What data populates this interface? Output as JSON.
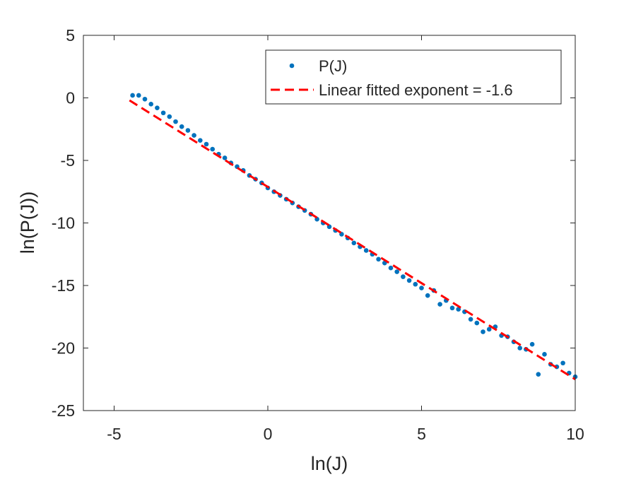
{
  "chart_data": {
    "type": "scatter",
    "title": "",
    "xlabel": "ln(J)",
    "ylabel": "ln(P(J))",
    "xlim": [
      -6,
      10
    ],
    "ylim": [
      -25,
      5
    ],
    "xticks": [
      -5,
      0,
      5,
      10
    ],
    "yticks": [
      5,
      0,
      -5,
      -10,
      -15,
      -20,
      -25
    ],
    "xtick_labels": [
      "-5",
      "0",
      "5",
      "10"
    ],
    "ytick_labels": [
      "5",
      "0",
      "-5",
      "-10",
      "-15",
      "-20",
      "-25"
    ],
    "grid": false,
    "legend_position": "top-right",
    "colors": {
      "points": "#0072BD",
      "fit": "#FF0000",
      "axes": "#262626"
    },
    "series": [
      {
        "name": "P(J)",
        "kind": "points",
        "x": [
          -4.4,
          -4.2,
          -4.0,
          -3.8,
          -3.6,
          -3.4,
          -3.2,
          -3.0,
          -2.8,
          -2.6,
          -2.4,
          -2.2,
          -2.0,
          -1.8,
          -1.6,
          -1.4,
          -1.2,
          -1.0,
          -0.8,
          -0.6,
          -0.4,
          -0.2,
          0.0,
          0.2,
          0.4,
          0.6,
          0.8,
          1.0,
          1.2,
          1.4,
          1.6,
          1.8,
          2.0,
          2.2,
          2.4,
          2.6,
          2.8,
          3.0,
          3.2,
          3.4,
          3.6,
          3.8,
          4.0,
          4.2,
          4.4,
          4.6,
          4.8,
          5.0,
          5.2,
          5.4,
          5.6,
          5.8,
          6.0,
          6.2,
          6.4,
          6.6,
          6.8,
          7.0,
          7.2,
          7.4,
          7.6,
          7.8,
          8.0,
          8.2,
          8.4,
          8.6,
          8.8,
          9.0,
          9.2,
          9.4,
          9.6,
          9.8,
          10.0
        ],
        "y": [
          0.2,
          0.2,
          -0.1,
          -0.5,
          -0.8,
          -1.2,
          -1.5,
          -1.9,
          -2.3,
          -2.6,
          -3.0,
          -3.4,
          -3.7,
          -4.1,
          -4.5,
          -4.8,
          -5.2,
          -5.5,
          -5.8,
          -6.2,
          -6.5,
          -6.8,
          -7.2,
          -7.5,
          -7.8,
          -8.1,
          -8.4,
          -8.7,
          -9.0,
          -9.3,
          -9.7,
          -10.0,
          -10.3,
          -10.6,
          -10.9,
          -11.2,
          -11.6,
          -11.9,
          -12.2,
          -12.5,
          -12.9,
          -13.2,
          -13.6,
          -13.9,
          -14.3,
          -14.6,
          -14.9,
          -15.2,
          -15.8,
          -15.4,
          -16.5,
          -16.2,
          -16.8,
          -16.9,
          -17.1,
          -17.7,
          -18.0,
          -18.7,
          -18.5,
          -18.3,
          -19.0,
          -19.1,
          -19.5,
          -20.0,
          -20.1,
          -19.7,
          -22.1,
          -20.5,
          -21.3,
          -21.5,
          -21.2,
          -22.0,
          -22.3
        ]
      },
      {
        "name": "Linear fitted exponent = -1.6",
        "kind": "dashed-line",
        "x": [
          -4.5,
          10.0
        ],
        "y": [
          -0.2,
          -22.5
        ]
      }
    ]
  }
}
